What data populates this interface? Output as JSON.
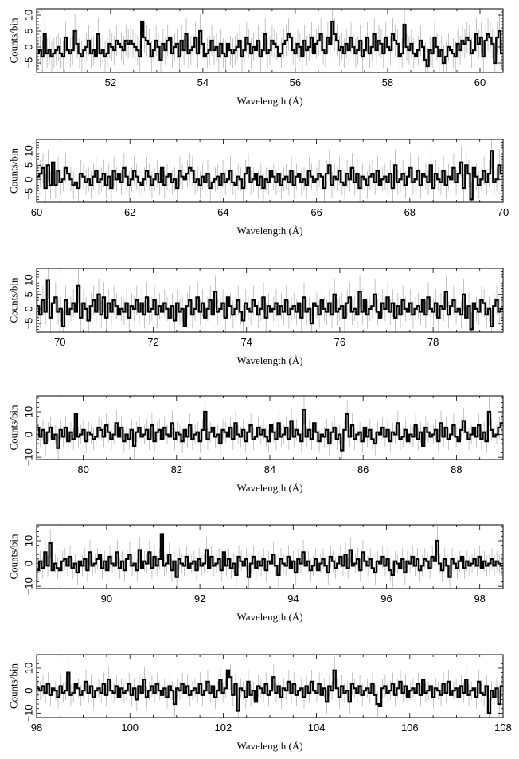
{
  "chart_data": [
    {
      "type": "line",
      "style": "step histogram with error bars",
      "xlabel": "Wavelength (Å)",
      "ylabel": "Counts/bin",
      "xlim": [
        50.4,
        60.5
      ],
      "ylim": [
        -8,
        12
      ],
      "x_ticks": [
        "52",
        "54",
        "56",
        "58",
        "60"
      ],
      "y_ticks": [
        "10",
        "5",
        "0",
        "−5"
      ],
      "grid": false,
      "values": [
        -2,
        -1,
        -3,
        4,
        -2,
        -1,
        -3,
        -2,
        -1,
        0,
        -2,
        -3,
        3,
        -1,
        -2,
        -1,
        5,
        1,
        -2,
        -3,
        -1,
        0,
        2,
        -2,
        -1,
        -3,
        4,
        -2,
        -1,
        -3,
        -2,
        1,
        0,
        -1,
        2,
        1,
        0,
        -1,
        2,
        1,
        2,
        1,
        0,
        -1,
        -3,
        8,
        3,
        2,
        1,
        -3,
        -1,
        2,
        0,
        -4,
        1,
        -1,
        2,
        3,
        -2,
        0,
        1,
        -3,
        2,
        -1,
        4,
        -2,
        -1,
        0,
        3,
        -2,
        5,
        1,
        -3,
        -2,
        -1,
        2,
        -1,
        0,
        -3,
        1,
        -2,
        -3,
        1,
        -1,
        -2,
        -1,
        0,
        2,
        -3,
        -1,
        3,
        1,
        -2,
        0,
        -1,
        2,
        -3,
        -1,
        4,
        -2,
        -1,
        2,
        1,
        0,
        -3,
        -2,
        1,
        2,
        4,
        3,
        -1,
        -2,
        1,
        0,
        -3,
        2,
        -1,
        0,
        3,
        -2,
        1,
        2,
        4,
        -1,
        -2,
        3,
        1,
        8,
        4,
        2,
        -1,
        0,
        -2,
        1,
        -1,
        3,
        0,
        -2,
        -1,
        2,
        -3,
        -1,
        3,
        -2,
        0,
        4,
        -1,
        2,
        1,
        -2,
        3,
        0,
        -1,
        4,
        2,
        1,
        -3,
        -2,
        7,
        0,
        -1,
        1,
        -2,
        -3,
        -1,
        2,
        0,
        -4,
        -6,
        -1,
        -2,
        3,
        0,
        -3,
        -1,
        -5,
        -3,
        0,
        -1,
        -2,
        -3,
        1,
        -1,
        2,
        1,
        3,
        2,
        -2,
        -1,
        4,
        1,
        3,
        -3,
        2,
        4,
        3,
        1,
        -5,
        3,
        5,
        -2
      ]
    },
    {
      "type": "line",
      "style": "step histogram with error bars",
      "xlabel": "Wavelength (Å)",
      "ylabel": "Counts/bin",
      "xlim": [
        60,
        70
      ],
      "ylim": [
        -8,
        14
      ],
      "x_ticks": [
        "60",
        "62",
        "64",
        "66",
        "68",
        "70"
      ],
      "y_ticks": [
        "10",
        "5",
        "0",
        "−5"
      ],
      "grid": false,
      "values": [
        1,
        2,
        4,
        -3,
        5,
        -2,
        6,
        -2,
        3,
        -1,
        0,
        4,
        2,
        0,
        -2,
        -1,
        -3,
        2,
        1,
        -1,
        0,
        -2,
        1,
        3,
        -1,
        0,
        2,
        -2,
        1,
        -3,
        3,
        0,
        2,
        -1,
        4,
        1,
        -2,
        0,
        3,
        1,
        -1,
        -2,
        0,
        3,
        1,
        -2,
        0,
        2,
        -1,
        4,
        -2,
        1,
        2,
        -1,
        0,
        -3,
        3,
        1,
        0,
        2,
        4,
        3,
        -1,
        0,
        -2,
        1,
        -1,
        2,
        -3,
        -1,
        0,
        1,
        -2,
        2,
        -1,
        0,
        3,
        -1,
        -2,
        1,
        0,
        -3,
        2,
        4,
        -1,
        0,
        2,
        -2,
        1,
        -3,
        0,
        -1,
        3,
        1,
        -1,
        2,
        -2,
        0,
        1,
        -1,
        3,
        -2,
        1,
        2,
        -1,
        0,
        -2,
        3,
        1,
        -1,
        0,
        2,
        1,
        -3,
        2,
        5,
        -2,
        1,
        0,
        3,
        -1,
        -2,
        2,
        0,
        4,
        -1,
        2,
        -3,
        1,
        0,
        -2,
        1,
        2,
        -1,
        3,
        -2,
        0,
        1,
        -1,
        2,
        -3,
        5,
        -1,
        0,
        2,
        -2,
        1,
        4,
        -1,
        0,
        3,
        -2,
        2,
        1,
        -1,
        5,
        -3,
        2,
        0,
        -1,
        3,
        -2,
        1,
        0,
        4,
        -1,
        2,
        6,
        -3,
        5,
        2,
        -7,
        4,
        1,
        -2,
        0,
        3,
        -1,
        2,
        10,
        -1,
        0,
        5,
        2
      ]
    },
    {
      "type": "line",
      "style": "step histogram with error bars",
      "xlabel": "Wavelength (Å)",
      "ylabel": "Counts/bin",
      "xlim": [
        69.5,
        79.5
      ],
      "ylim": [
        -8,
        14
      ],
      "x_ticks": [
        "70",
        "72",
        "74",
        "76",
        "78"
      ],
      "y_ticks": [
        "10",
        "5",
        "0",
        "−5"
      ],
      "grid": false,
      "values": [
        1,
        -2,
        3,
        -1,
        10,
        -3,
        2,
        4,
        -1,
        0,
        -6,
        3,
        -2,
        0,
        2,
        -1,
        8,
        -3,
        2,
        0,
        -4,
        1,
        3,
        -1,
        5,
        -2,
        4,
        -3,
        2,
        -1,
        3,
        1,
        -2,
        0,
        -1,
        2,
        -3,
        1,
        0,
        3,
        -1,
        2,
        -2,
        4,
        -1,
        0,
        3,
        -2,
        1,
        -1,
        2,
        0,
        -3,
        1,
        -4,
        2,
        -1,
        0,
        -6,
        1,
        3,
        -2,
        0,
        4,
        -1,
        2,
        -3,
        0,
        3,
        -2,
        6,
        -1,
        0,
        2,
        -3,
        4,
        1,
        -2,
        0,
        3,
        -1,
        -4,
        2,
        0,
        -1,
        3,
        1,
        -2,
        0,
        4,
        -3,
        1,
        -1,
        0,
        2,
        -2,
        1,
        -1,
        3,
        -2,
        0,
        1,
        -1,
        2,
        -3,
        4,
        -1,
        0,
        -5,
        2,
        1,
        -2,
        3,
        0,
        -1,
        2,
        -2,
        5,
        -1,
        0,
        1,
        -3,
        2,
        4,
        -1,
        0,
        -2,
        6,
        -1,
        3,
        -2,
        0,
        1,
        5,
        -1,
        -3,
        2,
        0,
        4,
        -1,
        2,
        -3,
        1,
        -2,
        3,
        0,
        -1,
        2,
        -2,
        0,
        1,
        -1,
        3,
        -2,
        4,
        0,
        -1,
        2,
        -3,
        1,
        0,
        6,
        -2,
        1,
        3,
        -1,
        0,
        -2,
        5,
        -3,
        1,
        -7,
        2,
        0,
        -1,
        3,
        2,
        -2,
        0,
        -6,
        1,
        3,
        -1,
        0
      ]
    },
    {
      "type": "line",
      "style": "step histogram with error bars",
      "xlabel": "Wavelength (Å)",
      "ylabel": "Counts/bin",
      "xlim": [
        79,
        89
      ],
      "ylim": [
        -11,
        17
      ],
      "x_ticks": [
        "80",
        "82",
        "84",
        "86",
        "88"
      ],
      "y_ticks": [
        "10",
        "0",
        "−10"
      ],
      "grid": false,
      "values": [
        3,
        -1,
        2,
        -4,
        1,
        3,
        -2,
        0,
        -6,
        2,
        -1,
        3,
        -3,
        1,
        -2,
        9,
        -1,
        0,
        2,
        -3,
        1,
        0,
        -2,
        -1,
        3,
        2,
        -1,
        4,
        1,
        -2,
        0,
        5,
        -1,
        3,
        -3,
        0,
        -2,
        2,
        -5,
        1,
        3,
        -1,
        0,
        2,
        -2,
        4,
        -3,
        1,
        2,
        -2,
        3,
        0,
        -1,
        5,
        -2,
        1,
        0,
        -3,
        2,
        -1,
        4,
        -2,
        0,
        1,
        -3,
        2,
        10,
        -2,
        1,
        3,
        -1,
        0,
        -4,
        2,
        1,
        -1,
        3,
        -2,
        5,
        0,
        -1,
        2,
        -3,
        1,
        4,
        -2,
        -1,
        3,
        0,
        2,
        -1,
        -3,
        4,
        1,
        -2,
        5,
        -1,
        0,
        3,
        -2,
        6,
        -1,
        2,
        0,
        -3,
        11,
        -1,
        2,
        -2,
        5,
        1,
        -3,
        0,
        -1,
        2,
        -4,
        1,
        3,
        -2,
        0,
        -7,
        2,
        9,
        -1,
        4,
        -2,
        0,
        1,
        -3,
        3,
        -1,
        2,
        -2,
        -4,
        1,
        0,
        3,
        -1,
        2,
        -3,
        1,
        0,
        5,
        -2,
        -1,
        2,
        -3,
        0,
        -1,
        4,
        -2,
        1,
        -5,
        3,
        1,
        -1,
        0,
        2,
        -3,
        5,
        -1,
        3,
        -2,
        0,
        4,
        -1,
        -3,
        2,
        6,
        1,
        -2,
        0,
        3,
        -1,
        4,
        -2,
        1,
        -3,
        10,
        2,
        -1,
        0,
        3,
        5
      ]
    },
    {
      "type": "line",
      "style": "step histogram with error bars",
      "xlabel": "Wavelength (Å)",
      "ylabel": "Counts/bin",
      "xlim": [
        88.5,
        98.5
      ],
      "ylim": [
        -11,
        17
      ],
      "x_ticks": [
        "90",
        "92",
        "94",
        "96",
        "98"
      ],
      "y_ticks": [
        "10",
        "0",
        "−10"
      ],
      "grid": false,
      "values": [
        -3,
        1,
        -2,
        5,
        -1,
        9,
        -3,
        0,
        -2,
        -3,
        1,
        2,
        -1,
        3,
        -2,
        0,
        -4,
        1,
        -1,
        2,
        -3,
        5,
        -1,
        0,
        2,
        4,
        -2,
        1,
        -3,
        3,
        0,
        -1,
        5,
        -2,
        1,
        -3,
        2,
        4,
        -1,
        0,
        -3,
        6,
        -2,
        1,
        0,
        5,
        -2,
        3,
        -1,
        2,
        13,
        -1,
        0,
        4,
        -3,
        1,
        -6,
        2,
        0,
        -1,
        3,
        -2,
        0,
        1,
        -3,
        2,
        -1,
        0,
        6,
        -2,
        3,
        -1,
        0,
        2,
        -3,
        5,
        -1,
        2,
        -2,
        0,
        -5,
        3,
        1,
        -1,
        2,
        -6,
        0,
        3,
        -2,
        1,
        -1,
        2,
        -3,
        1,
        0,
        4,
        -1,
        -5,
        2,
        0,
        -1,
        3,
        -2,
        1,
        -4,
        2,
        0,
        5,
        -1,
        1,
        -3,
        -1,
        2,
        -3,
        0,
        2,
        -1,
        -4,
        3,
        1,
        -2,
        0,
        3,
        -1,
        4,
        -2,
        6,
        -1,
        0,
        2,
        -3,
        5,
        1,
        -1,
        2,
        -2,
        -4,
        1,
        0,
        3,
        -1,
        2,
        -3,
        -5,
        1,
        0,
        -2,
        2,
        -4,
        1,
        0,
        3,
        -1,
        2,
        -3,
        -1,
        2,
        1,
        -2,
        3,
        1,
        10,
        0,
        -3,
        2,
        -1,
        -6,
        2,
        0,
        -2,
        1,
        3,
        -2,
        1,
        -1,
        0,
        2,
        -1,
        3,
        -2,
        1,
        -1,
        0,
        2,
        -1,
        1,
        0,
        -1
      ]
    },
    {
      "type": "line",
      "style": "step histogram with error bars",
      "xlabel": "Wavelength (Å)",
      "ylabel": "Counts/bin",
      "xlim": [
        98,
        108
      ],
      "ylim": [
        -12,
        16
      ],
      "x_ticks": [
        "98",
        "100",
        "102",
        "104",
        "106",
        "108"
      ],
      "y_ticks": [
        "10",
        "0",
        "−10"
      ],
      "grid": false,
      "values": [
        1,
        0,
        2,
        -1,
        3,
        -2,
        1,
        0,
        -3,
        2,
        -1,
        0,
        8,
        -2,
        -1,
        3,
        1,
        -2,
        0,
        4,
        -1,
        2,
        -3,
        0,
        1,
        -1,
        3,
        -2,
        5,
        0,
        -1,
        2,
        -3,
        1,
        -1,
        0,
        3,
        -2,
        1,
        -4,
        2,
        -1,
        5,
        -3,
        0,
        2,
        -1,
        3,
        0,
        -2,
        1,
        -3,
        2,
        0,
        -6,
        1,
        0,
        3,
        -1,
        2,
        -2,
        0,
        1,
        -1,
        3,
        -2,
        0,
        4,
        -1,
        2,
        -3,
        0,
        5,
        -1,
        1,
        9,
        6,
        -2,
        3,
        -9,
        1,
        0,
        -3,
        4,
        -2,
        0,
        -5,
        2,
        1,
        -1,
        3,
        -2,
        0,
        6,
        -1,
        2,
        -3,
        1,
        0,
        4,
        -1,
        3,
        -2,
        0,
        1,
        -3,
        2,
        -1,
        4,
        0,
        -1,
        3,
        -2,
        1,
        -5,
        2,
        0,
        9,
        1,
        -3,
        2,
        -1,
        0,
        -5,
        3,
        1,
        -1,
        2,
        -2,
        0,
        1,
        -1,
        3,
        -2,
        -6,
        -7,
        1,
        2,
        -1,
        0,
        3,
        -2,
        1,
        4,
        -1,
        2,
        -3,
        0,
        1,
        -1,
        3,
        -2,
        5,
        -1,
        0,
        2,
        -3,
        1,
        0,
        -2,
        3,
        -1,
        4,
        -2,
        0,
        1,
        -3,
        2,
        -1,
        5,
        -2,
        0,
        1,
        -3,
        4,
        -1,
        -2,
        2,
        -10,
        0,
        -3,
        1,
        -6,
        2
      ]
    }
  ]
}
